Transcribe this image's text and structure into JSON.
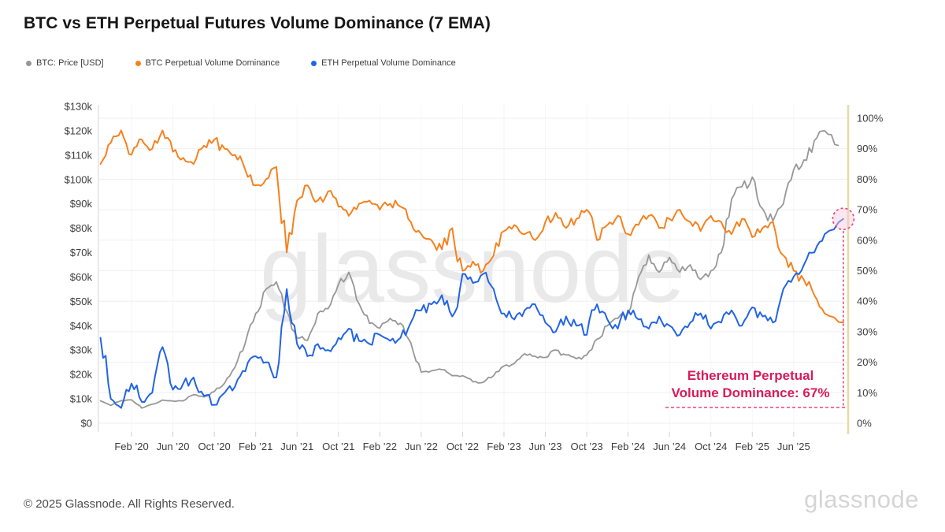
{
  "page": {
    "footer_copyright": "© 2025 Glassnode. All Rights Reserved.",
    "brand_wordmark": "glassnode",
    "watermark": "glassnode"
  },
  "chart_data": {
    "type": "line",
    "title": "BTC vs ETH Perpetual Futures Volume Dominance (7 EMA)",
    "x_start_month": "Nov 2019",
    "end_t": 71.8,
    "x_ticks": [
      {
        "t": 3,
        "label": "Feb ’20"
      },
      {
        "t": 7,
        "label": "Jun ’20"
      },
      {
        "t": 11,
        "label": "Oct ’20"
      },
      {
        "t": 15,
        "label": "Feb ’21"
      },
      {
        "t": 19,
        "label": "Jun ’21"
      },
      {
        "t": 23,
        "label": "Oct ’21"
      },
      {
        "t": 27,
        "label": "Feb ’22"
      },
      {
        "t": 31,
        "label": "Jun ’22"
      },
      {
        "t": 35,
        "label": "Oct ’22"
      },
      {
        "t": 39,
        "label": "Feb ’23"
      },
      {
        "t": 43,
        "label": "Jun ’23"
      },
      {
        "t": 47,
        "label": "Oct ’23"
      },
      {
        "t": 51,
        "label": "Feb ’24"
      },
      {
        "t": 55,
        "label": "Jun ’24"
      },
      {
        "t": 59,
        "label": "Oct ’24"
      },
      {
        "t": 63,
        "label": "Feb ’25"
      },
      {
        "t": 67,
        "label": "Jun ’25"
      }
    ],
    "y_left": {
      "tick_labels": [
        "$0",
        "$10k",
        "$20k",
        "$30k",
        "$40k",
        "$50k",
        "$60k",
        "$70k",
        "$80k",
        "$90k",
        "$100k",
        "$110k",
        "$120k",
        "$130k"
      ],
      "tick_step_value": 10,
      "range": [
        0,
        130
      ],
      "unit": "USD (thousands)"
    },
    "y_right": {
      "tick_labels": [
        "0%",
        "10%",
        "20%",
        "30%",
        "40%",
        "50%",
        "60%",
        "70%",
        "80%",
        "90%",
        "100%"
      ],
      "tick_step_value": 10,
      "range": [
        0,
        100
      ],
      "unit": "percent"
    },
    "grid": "horizontal-and-faint-vertical",
    "legend_position": "top-left",
    "series": [
      {
        "name": "BTC: Price [USD]",
        "color": "#979797",
        "axis": "left",
        "unit": "k USD",
        "end_t": 71.3,
        "values": [
          9.2,
          7.3,
          9.3,
          9.6,
          6.2,
          7.8,
          9.5,
          9.1,
          9.2,
          11.7,
          10.8,
          13,
          16.5,
          23,
          33,
          45,
          55,
          58,
          46,
          35,
          34,
          45,
          47,
          57,
          62,
          49,
          41,
          39,
          43,
          41,
          33,
          21,
          21.5,
          22,
          19.5,
          19.5,
          17,
          16.8,
          19.5,
          23.5,
          24.5,
          28.5,
          27.5,
          27,
          30,
          28,
          26.5,
          28,
          34.5,
          40,
          43,
          45,
          60,
          69,
          62,
          68,
          62,
          65,
          59,
          62.5,
          70,
          92,
          97,
          101,
          88,
          83,
          90,
          104,
          108,
          116,
          120,
          114
        ]
      },
      {
        "name": "BTC Perpetual Volume Dominance",
        "color": "#f58220",
        "axis": "right",
        "unit": "%",
        "values": [
          85,
          92,
          96,
          88,
          93,
          90,
          96,
          89,
          87,
          85,
          91,
          93,
          90,
          88,
          83,
          78,
          80,
          84,
          56,
          73,
          78,
          73,
          76,
          71,
          68,
          72,
          73,
          70,
          72,
          71,
          66,
          62,
          60,
          57,
          64,
          50,
          53,
          50,
          55,
          63,
          65,
          62,
          60,
          66,
          69,
          64,
          67,
          70,
          60,
          65,
          68,
          62,
          65,
          68,
          64,
          67,
          70,
          66,
          63,
          68,
          66,
          62,
          67,
          61,
          64,
          66,
          55,
          50,
          47,
          42,
          36,
          33
        ]
      },
      {
        "name": "ETH Perpetual Volume Dominance",
        "color": "#2264e5",
        "axis": "right",
        "unit": "%",
        "values": [
          28,
          8,
          5,
          13,
          7,
          10,
          25,
          11,
          13,
          15,
          9,
          6,
          10,
          12,
          17,
          22,
          20,
          15,
          44,
          26,
          22,
          26,
          24,
          28,
          31,
          27,
          26,
          29,
          27,
          28,
          33,
          37,
          39,
          42,
          35,
          49,
          46,
          49,
          44,
          36,
          34,
          37,
          39,
          33,
          30,
          35,
          32,
          29,
          39,
          34,
          31,
          37,
          34,
          31,
          35,
          32,
          29,
          33,
          36,
          31,
          33,
          37,
          32,
          38,
          35,
          33,
          44,
          48,
          52,
          56,
          62,
          67
        ]
      }
    ],
    "annotation": {
      "line1": "Ethereum Perpetual",
      "line2": "Volume Dominance: 67%",
      "value_pct": 67,
      "color": "#d81b5c",
      "marker_fill": "#f8c8dc",
      "highlighted_series": "ETH Perpetual Volume Dominance"
    },
    "now_line_color": "#e0ddab"
  }
}
